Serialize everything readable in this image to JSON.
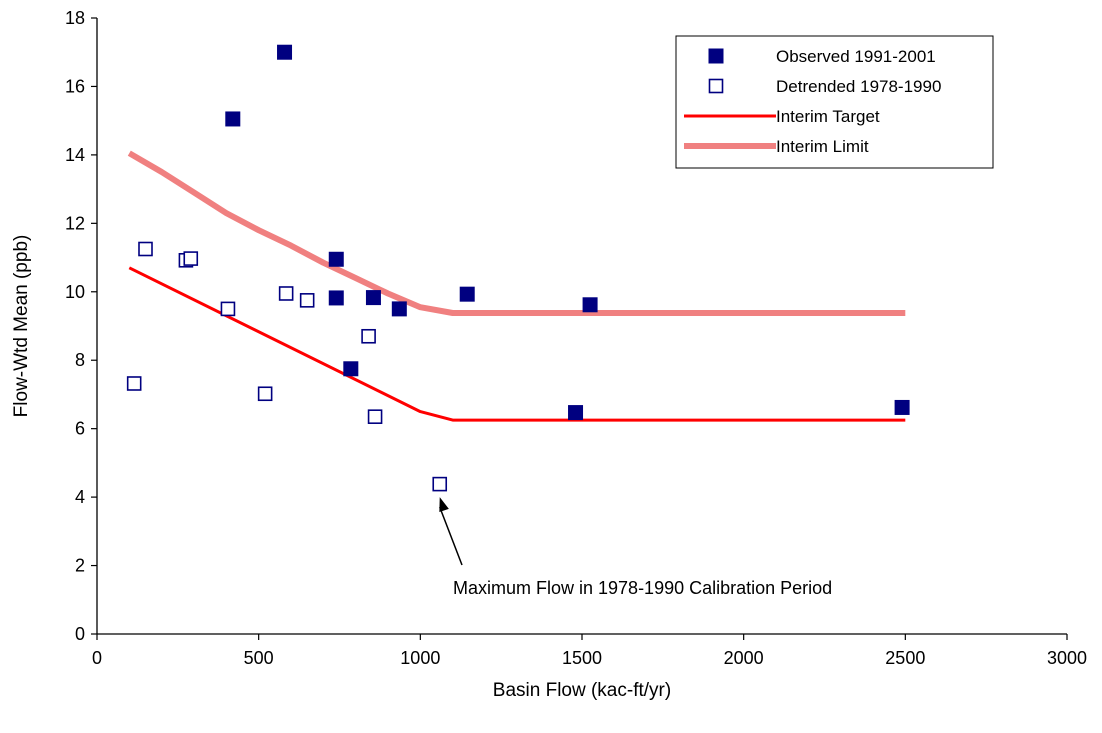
{
  "chart_data": {
    "type": "scatter",
    "title": "",
    "xlabel": "Basin Flow (kac-ft/yr)",
    "ylabel": "Flow-Wtd Mean (ppb)",
    "xlim": [
      0,
      3000
    ],
    "ylim": [
      0,
      18
    ],
    "x_ticks": [
      "0",
      "500",
      "1000",
      "1500",
      "2000",
      "2500",
      "3000"
    ],
    "y_ticks": [
      "0",
      "2",
      "4",
      "6",
      "8",
      "10",
      "12",
      "14",
      "16",
      "18"
    ],
    "grid": false,
    "legend_position": "top-right",
    "series": [
      {
        "name": "Observed 1991-2001",
        "kind": "marker-filled",
        "color": "#000080",
        "points": [
          {
            "x": 420,
            "y": 15.05
          },
          {
            "x": 580,
            "y": 17.0
          },
          {
            "x": 740,
            "y": 10.95
          },
          {
            "x": 740,
            "y": 9.82
          },
          {
            "x": 785,
            "y": 7.75
          },
          {
            "x": 855,
            "y": 9.83
          },
          {
            "x": 935,
            "y": 9.5
          },
          {
            "x": 1145,
            "y": 9.93
          },
          {
            "x": 1480,
            "y": 6.47
          },
          {
            "x": 1525,
            "y": 9.62
          },
          {
            "x": 2490,
            "y": 6.62
          }
        ]
      },
      {
        "name": "Detrended 1978-1990",
        "kind": "marker-hollow",
        "color": "#000080",
        "points": [
          {
            "x": 115,
            "y": 7.32
          },
          {
            "x": 150,
            "y": 11.25
          },
          {
            "x": 275,
            "y": 10.92
          },
          {
            "x": 290,
            "y": 10.97
          },
          {
            "x": 405,
            "y": 9.5
          },
          {
            "x": 520,
            "y": 7.02
          },
          {
            "x": 585,
            "y": 9.95
          },
          {
            "x": 650,
            "y": 9.75
          },
          {
            "x": 840,
            "y": 8.7
          },
          {
            "x": 860,
            "y": 6.35
          },
          {
            "x": 1060,
            "y": 4.38
          }
        ]
      },
      {
        "name": "Interim Target",
        "kind": "line",
        "color": "#ff0000",
        "points": [
          {
            "x": 100,
            "y": 10.7
          },
          {
            "x": 1000,
            "y": 6.5
          },
          {
            "x": 1100,
            "y": 6.25
          },
          {
            "x": 2500,
            "y": 6.25
          }
        ]
      },
      {
        "name": "Interim Limit",
        "kind": "line-thick",
        "color": "#f08080",
        "points": [
          {
            "x": 100,
            "y": 14.05
          },
          {
            "x": 200,
            "y": 13.5
          },
          {
            "x": 300,
            "y": 12.9
          },
          {
            "x": 400,
            "y": 12.3
          },
          {
            "x": 500,
            "y": 11.8
          },
          {
            "x": 600,
            "y": 11.35
          },
          {
            "x": 700,
            "y": 10.85
          },
          {
            "x": 800,
            "y": 10.4
          },
          {
            "x": 900,
            "y": 9.95
          },
          {
            "x": 1000,
            "y": 9.55
          },
          {
            "x": 1100,
            "y": 9.38
          },
          {
            "x": 2500,
            "y": 9.38
          }
        ]
      }
    ],
    "annotations": [
      {
        "text": "Maximum Flow in 1978-1990 Calibration Period",
        "arrow_to": {
          "x": 1060,
          "y": 4.0
        }
      }
    ]
  }
}
